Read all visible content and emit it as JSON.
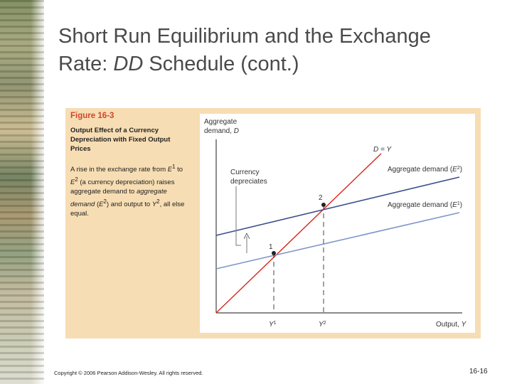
{
  "slide": {
    "title_line1": "Short Run Equilibrium and the Exchange",
    "title_line2_prefix": "Rate: ",
    "title_line2_italic": "DD",
    "title_line2_suffix": " Schedule (cont.)",
    "footer": "Copyright © 2006 Pearson Addison-Wesley. All rights reserved.",
    "slide_number": "16-16"
  },
  "figure": {
    "number": "Figure 16-3",
    "subtitle": "Output Effect of a Currency Depreciation with Fixed Output Prices",
    "caption": {
      "p1": "A rise in the exchange rate from ",
      "e1": "E",
      "s1": "1",
      "p2": " to ",
      "e2": "E",
      "s2": "2",
      "p3": " (a currency depreciation) raises aggregate demand to ",
      "ad": "aggregate demand",
      "p4": " (",
      "e3": "E",
      "s3": "2",
      "p5": ") and output to ",
      "y": "Y",
      "s4": "2",
      "p6": ", all else equal."
    }
  },
  "diagram": {
    "y_axis_label_1": "Aggregate",
    "y_axis_label_2": "demand, ",
    "y_axis_label_var": "D",
    "x_axis_label": "Output, ",
    "x_axis_label_var": "Y",
    "line_45_label": "D = Y",
    "ad2_label": "Aggregate demand (",
    "ad2_var": "E",
    "ad2_sup": "2",
    "ad1_label": "Aggregate demand (",
    "ad1_var": "E",
    "ad1_sup": "1",
    "close_paren": ")",
    "annotation_1": "Currency",
    "annotation_2": "depreciates",
    "point_1": "1",
    "point_2": "2",
    "tick_y1": "Y",
    "tick_y1_sup": "1",
    "tick_y2": "Y",
    "tick_y2_sup": "2",
    "colors": {
      "red_line": "#d9261c",
      "ad2_line": "#3c4d8c",
      "ad1_line": "#7f97c9",
      "figure_bg": "#f7ddb3",
      "figure_title": "#d2452c"
    }
  }
}
